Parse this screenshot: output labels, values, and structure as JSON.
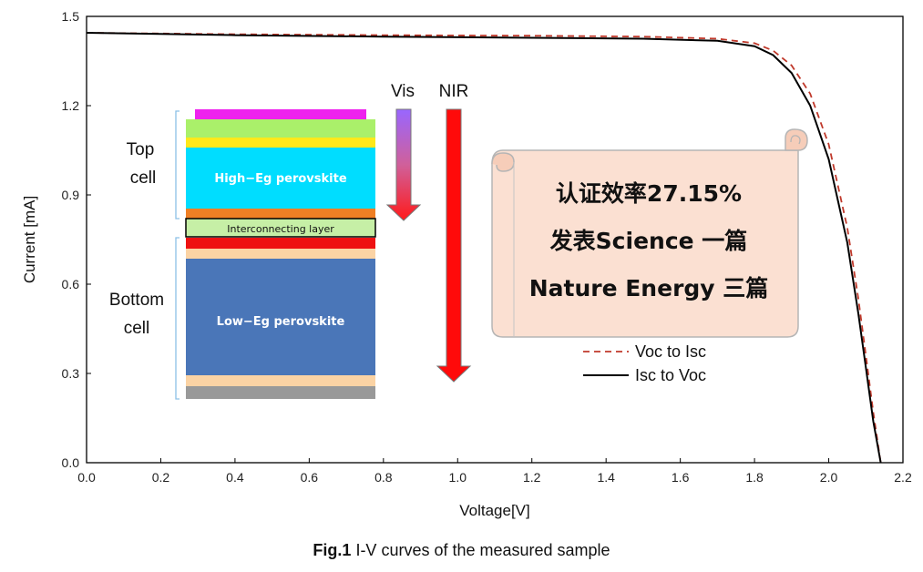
{
  "chart_data": {
    "type": "line",
    "xlabel": "Voltage[V]",
    "ylabel": "Current [mA]",
    "xlim": [
      0,
      2.2
    ],
    "ylim": [
      0,
      1.5
    ],
    "x_ticks": [
      "0.0",
      "0.2",
      "0.4",
      "0.6",
      "0.8",
      "1.0",
      "1.2",
      "1.4",
      "1.6",
      "1.8",
      "2.0",
      "2.2"
    ],
    "y_ticks": [
      "0.0",
      "0.3",
      "0.6",
      "0.9",
      "1.2",
      "1.5"
    ],
    "series": [
      {
        "name": "Voc to Isc",
        "style": "dashed",
        "color": "#c0392b",
        "x": [
          0,
          0.4,
          0.8,
          1.2,
          1.5,
          1.7,
          1.8,
          1.85,
          1.9,
          1.95,
          2.0,
          2.05,
          2.08,
          2.1,
          2.12,
          2.14
        ],
        "y": [
          1.445,
          1.44,
          1.437,
          1.435,
          1.432,
          1.425,
          1.41,
          1.385,
          1.335,
          1.24,
          1.07,
          0.79,
          0.55,
          0.36,
          0.17,
          0.0
        ]
      },
      {
        "name": "Isc to Voc",
        "style": "solid",
        "color": "#000000",
        "x": [
          0,
          0.4,
          0.8,
          1.2,
          1.5,
          1.7,
          1.8,
          1.85,
          1.9,
          1.95,
          2.0,
          2.05,
          2.08,
          2.1,
          2.12,
          2.14
        ],
        "y": [
          1.445,
          1.437,
          1.432,
          1.428,
          1.425,
          1.418,
          1.4,
          1.37,
          1.31,
          1.2,
          1.02,
          0.74,
          0.5,
          0.32,
          0.14,
          0.0
        ]
      }
    ],
    "legend": [
      "Voc to Isc",
      "Isc to Voc"
    ],
    "legend_position": "bottom-right"
  },
  "inset": {
    "vis_label": "Vis",
    "nir_label": "NIR",
    "top_label_1": "Top",
    "top_label_2": "cell",
    "bottom_label_1": "Bottom",
    "bottom_label_2": "cell",
    "high_eg_label": "High−Eg  perovskite",
    "low_eg_label": "Low−Eg  perovskite",
    "interconnect_label": "Interconnecting layer"
  },
  "scroll": {
    "line1": "认证效率27.15%",
    "line2": "发表Science 一篇",
    "line3": "Nature Energy 三篇"
  },
  "caption": {
    "bold": "Fig.1",
    "text": " I-V curves of the measured sample"
  }
}
